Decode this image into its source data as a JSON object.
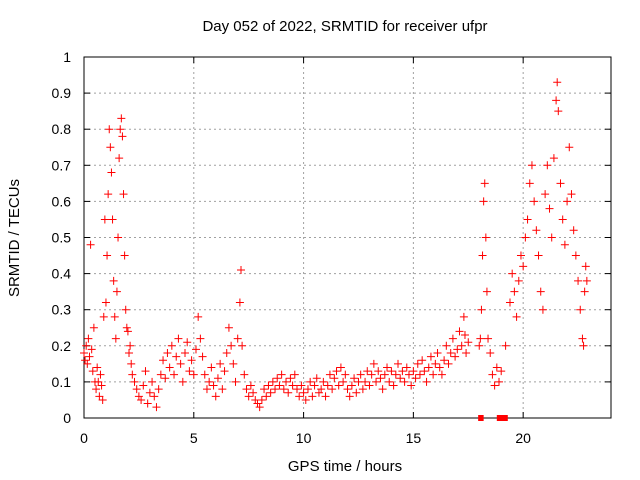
{
  "chart_data": {
    "type": "scatter",
    "title": "Day 052 of 2022, SRMTID for receiver ufpr",
    "xlabel": "GPS time / hours",
    "ylabel": "SRMTID / TECUs",
    "xlim": [
      0,
      24
    ],
    "ylim": [
      0,
      1
    ],
    "xticks": [
      0,
      5,
      10,
      15,
      20
    ],
    "xtick_labels": [
      "0",
      "5",
      "10",
      "15",
      "20"
    ],
    "yticks": [
      0,
      0.1,
      0.2,
      0.3,
      0.4,
      0.5,
      0.6,
      0.7,
      0.8,
      0.9,
      1
    ],
    "ytick_labels": [
      "0",
      "0.1",
      "0.2",
      "0.3",
      "0.4",
      "0.5",
      "0.6",
      "0.7",
      "0.8",
      "0.9",
      "1"
    ],
    "grid": true,
    "colors": {
      "series": "#ff0000",
      "grid": "#a0a0a0",
      "axis": "#000000"
    },
    "series": [
      {
        "name": "SRMTID",
        "marker": "plus",
        "points": [
          [
            0.0,
            0.18
          ],
          [
            0.05,
            0.16
          ],
          [
            0.1,
            0.2
          ],
          [
            0.15,
            0.15
          ],
          [
            0.2,
            0.22
          ],
          [
            0.25,
            0.17
          ],
          [
            0.3,
            0.48
          ],
          [
            0.35,
            0.19
          ],
          [
            0.4,
            0.13
          ],
          [
            0.45,
            0.25
          ],
          [
            0.5,
            0.1
          ],
          [
            0.55,
            0.08
          ],
          [
            0.6,
            0.14
          ],
          [
            0.65,
            0.1
          ],
          [
            0.7,
            0.06
          ],
          [
            0.75,
            0.12
          ],
          [
            0.8,
            0.09
          ],
          [
            0.85,
            0.05
          ],
          [
            0.9,
            0.28
          ],
          [
            0.95,
            0.55
          ],
          [
            1.0,
            0.32
          ],
          [
            1.05,
            0.45
          ],
          [
            1.1,
            0.62
          ],
          [
            1.15,
            0.8
          ],
          [
            1.2,
            0.75
          ],
          [
            1.25,
            0.68
          ],
          [
            1.3,
            0.55
          ],
          [
            1.35,
            0.38
          ],
          [
            1.4,
            0.28
          ],
          [
            1.45,
            0.22
          ],
          [
            1.5,
            0.35
          ],
          [
            1.55,
            0.5
          ],
          [
            1.6,
            0.72
          ],
          [
            1.65,
            0.8
          ],
          [
            1.7,
            0.83
          ],
          [
            1.75,
            0.78
          ],
          [
            1.8,
            0.62
          ],
          [
            1.85,
            0.45
          ],
          [
            1.9,
            0.3
          ],
          [
            1.95,
            0.25
          ],
          [
            2.0,
            0.24
          ],
          [
            2.05,
            0.18
          ],
          [
            2.1,
            0.2
          ],
          [
            2.15,
            0.15
          ],
          [
            2.2,
            0.12
          ],
          [
            2.3,
            0.1
          ],
          [
            2.4,
            0.08
          ],
          [
            2.5,
            0.06
          ],
          [
            2.6,
            0.05
          ],
          [
            2.7,
            0.09
          ],
          [
            2.8,
            0.13
          ],
          [
            2.9,
            0.04
          ],
          [
            3.0,
            0.07
          ],
          [
            3.1,
            0.1
          ],
          [
            3.2,
            0.06
          ],
          [
            3.3,
            0.03
          ],
          [
            3.4,
            0.08
          ],
          [
            3.5,
            0.12
          ],
          [
            3.6,
            0.16
          ],
          [
            3.7,
            0.11
          ],
          [
            3.8,
            0.18
          ],
          [
            3.9,
            0.14
          ],
          [
            4.0,
            0.2
          ],
          [
            4.1,
            0.12
          ],
          [
            4.2,
            0.17
          ],
          [
            4.3,
            0.22
          ],
          [
            4.4,
            0.15
          ],
          [
            4.5,
            0.1
          ],
          [
            4.6,
            0.18
          ],
          [
            4.7,
            0.21
          ],
          [
            4.8,
            0.13
          ],
          [
            4.9,
            0.16
          ],
          [
            5.0,
            0.12
          ],
          [
            5.1,
            0.19
          ],
          [
            5.2,
            0.28
          ],
          [
            5.3,
            0.22
          ],
          [
            5.4,
            0.17
          ],
          [
            5.5,
            0.12
          ],
          [
            5.6,
            0.08
          ],
          [
            5.7,
            0.1
          ],
          [
            5.8,
            0.14
          ],
          [
            5.9,
            0.09
          ],
          [
            6.0,
            0.06
          ],
          [
            6.1,
            0.11
          ],
          [
            6.2,
            0.15
          ],
          [
            6.3,
            0.08
          ],
          [
            6.4,
            0.13
          ],
          [
            6.5,
            0.18
          ],
          [
            6.6,
            0.25
          ],
          [
            6.7,
            0.2
          ],
          [
            6.8,
            0.15
          ],
          [
            6.9,
            0.1
          ],
          [
            7.0,
            0.22
          ],
          [
            7.1,
            0.32
          ],
          [
            7.15,
            0.41
          ],
          [
            7.2,
            0.2
          ],
          [
            7.3,
            0.12
          ],
          [
            7.4,
            0.08
          ],
          [
            7.5,
            0.06
          ],
          [
            7.6,
            0.09
          ],
          [
            7.7,
            0.07
          ],
          [
            7.8,
            0.05
          ],
          [
            7.9,
            0.04
          ],
          [
            8.0,
            0.03
          ],
          [
            8.1,
            0.05
          ],
          [
            8.2,
            0.08
          ],
          [
            8.3,
            0.06
          ],
          [
            8.4,
            0.09
          ],
          [
            8.5,
            0.07
          ],
          [
            8.6,
            0.1
          ],
          [
            8.7,
            0.08
          ],
          [
            8.8,
            0.11
          ],
          [
            8.9,
            0.09
          ],
          [
            9.0,
            0.12
          ],
          [
            9.1,
            0.08
          ],
          [
            9.2,
            0.1
          ],
          [
            9.3,
            0.07
          ],
          [
            9.4,
            0.11
          ],
          [
            9.5,
            0.09
          ],
          [
            9.6,
            0.12
          ],
          [
            9.7,
            0.08
          ],
          [
            9.8,
            0.06
          ],
          [
            9.9,
            0.09
          ],
          [
            10.0,
            0.07
          ],
          [
            10.1,
            0.05
          ],
          [
            10.2,
            0.08
          ],
          [
            10.3,
            0.1
          ],
          [
            10.4,
            0.06
          ],
          [
            10.5,
            0.09
          ],
          [
            10.6,
            0.11
          ],
          [
            10.7,
            0.07
          ],
          [
            10.8,
            0.08
          ],
          [
            10.9,
            0.1
          ],
          [
            11.0,
            0.06
          ],
          [
            11.1,
            0.09
          ],
          [
            11.2,
            0.12
          ],
          [
            11.3,
            0.08
          ],
          [
            11.4,
            0.11
          ],
          [
            11.5,
            0.13
          ],
          [
            11.6,
            0.09
          ],
          [
            11.7,
            0.14
          ],
          [
            11.8,
            0.1
          ],
          [
            11.9,
            0.12
          ],
          [
            12.0,
            0.08
          ],
          [
            12.1,
            0.06
          ],
          [
            12.2,
            0.09
          ],
          [
            12.3,
            0.11
          ],
          [
            12.4,
            0.07
          ],
          [
            12.5,
            0.1
          ],
          [
            12.6,
            0.12
          ],
          [
            12.7,
            0.08
          ],
          [
            12.8,
            0.1
          ],
          [
            12.9,
            0.13
          ],
          [
            13.0,
            0.09
          ],
          [
            13.1,
            0.12
          ],
          [
            13.2,
            0.15
          ],
          [
            13.3,
            0.1
          ],
          [
            13.4,
            0.13
          ],
          [
            13.5,
            0.11
          ],
          [
            13.6,
            0.08
          ],
          [
            13.7,
            0.12
          ],
          [
            13.8,
            0.14
          ],
          [
            13.9,
            0.1
          ],
          [
            14.0,
            0.13
          ],
          [
            14.1,
            0.09
          ],
          [
            14.2,
            0.12
          ],
          [
            14.3,
            0.15
          ],
          [
            14.4,
            0.11
          ],
          [
            14.5,
            0.13
          ],
          [
            14.6,
            0.1
          ],
          [
            14.7,
            0.14
          ],
          [
            14.8,
            0.12
          ],
          [
            14.9,
            0.09
          ],
          [
            15.0,
            0.13
          ],
          [
            15.1,
            0.11
          ],
          [
            15.2,
            0.15
          ],
          [
            15.3,
            0.12
          ],
          [
            15.4,
            0.16
          ],
          [
            15.5,
            0.13
          ],
          [
            15.6,
            0.1
          ],
          [
            15.7,
            0.14
          ],
          [
            15.8,
            0.17
          ],
          [
            15.9,
            0.12
          ],
          [
            16.0,
            0.15
          ],
          [
            16.1,
            0.18
          ],
          [
            16.2,
            0.14
          ],
          [
            16.3,
            0.12
          ],
          [
            16.4,
            0.16
          ],
          [
            16.5,
            0.2
          ],
          [
            16.6,
            0.15
          ],
          [
            16.7,
            0.18
          ],
          [
            16.8,
            0.22
          ],
          [
            16.9,
            0.17
          ],
          [
            17.0,
            0.19
          ],
          [
            17.1,
            0.24
          ],
          [
            17.2,
            0.2
          ],
          [
            17.3,
            0.28
          ],
          [
            17.35,
            0.23
          ],
          [
            17.4,
            0.18
          ],
          [
            17.5,
            0.21
          ],
          [
            18.0,
            0.2
          ],
          [
            18.05,
            0.22
          ],
          [
            18.1,
            0.3
          ],
          [
            18.15,
            0.45
          ],
          [
            18.2,
            0.6
          ],
          [
            18.25,
            0.65
          ],
          [
            18.3,
            0.5
          ],
          [
            18.35,
            0.35
          ],
          [
            18.4,
            0.22
          ],
          [
            18.5,
            0.18
          ],
          [
            18.6,
            0.12
          ],
          [
            18.7,
            0.09
          ],
          [
            18.8,
            0.14
          ],
          [
            18.9,
            0.1
          ],
          [
            19.0,
            0.13
          ],
          [
            19.2,
            0.2
          ],
          [
            19.4,
            0.32
          ],
          [
            19.5,
            0.4
          ],
          [
            19.6,
            0.35
          ],
          [
            19.7,
            0.28
          ],
          [
            19.8,
            0.38
          ],
          [
            19.9,
            0.45
          ],
          [
            20.0,
            0.42
          ],
          [
            20.1,
            0.5
          ],
          [
            20.2,
            0.55
          ],
          [
            20.3,
            0.65
          ],
          [
            20.4,
            0.7
          ],
          [
            20.5,
            0.6
          ],
          [
            20.6,
            0.52
          ],
          [
            20.7,
            0.45
          ],
          [
            20.8,
            0.35
          ],
          [
            20.9,
            0.3
          ],
          [
            21.0,
            0.62
          ],
          [
            21.1,
            0.7
          ],
          [
            21.2,
            0.58
          ],
          [
            21.3,
            0.5
          ],
          [
            21.4,
            0.72
          ],
          [
            21.5,
            0.88
          ],
          [
            21.55,
            0.93
          ],
          [
            21.6,
            0.85
          ],
          [
            21.7,
            0.65
          ],
          [
            21.8,
            0.55
          ],
          [
            21.9,
            0.48
          ],
          [
            22.0,
            0.6
          ],
          [
            22.1,
            0.75
          ],
          [
            22.2,
            0.62
          ],
          [
            22.3,
            0.52
          ],
          [
            22.4,
            0.45
          ],
          [
            22.5,
            0.38
          ],
          [
            22.6,
            0.3
          ],
          [
            22.7,
            0.22
          ],
          [
            22.75,
            0.2
          ],
          [
            22.8,
            0.35
          ],
          [
            22.85,
            0.42
          ],
          [
            22.9,
            0.38
          ]
        ]
      }
    ],
    "gap_markers": [
      {
        "x_start": 17.95,
        "x_end": 18.2,
        "y": 0
      },
      {
        "x_start": 18.8,
        "x_end": 19.3,
        "y": 0
      }
    ]
  }
}
